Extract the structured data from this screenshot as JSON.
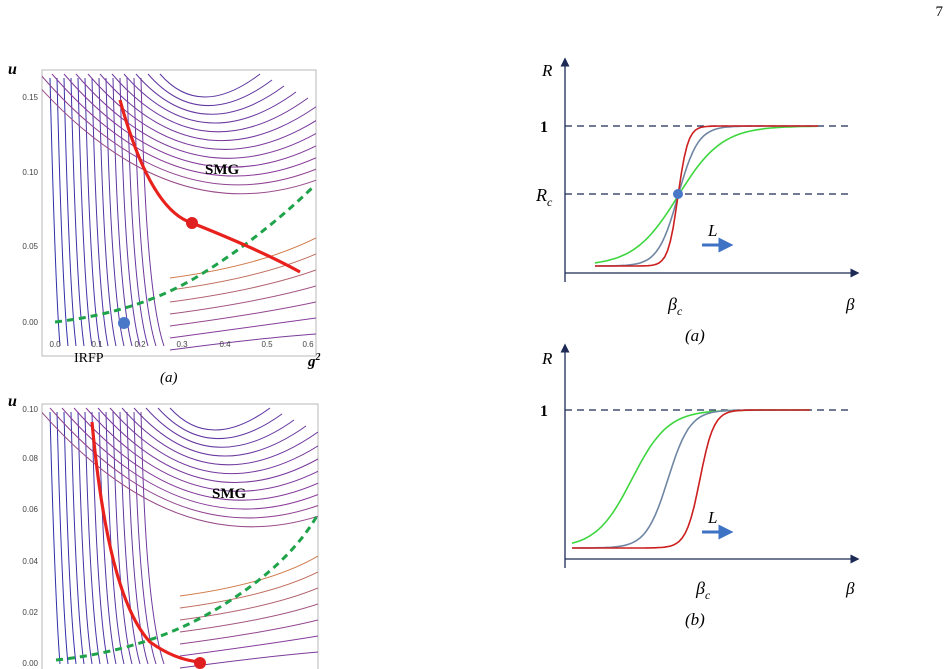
{
  "page_number": "7",
  "stream_plots": [
    {
      "y_axis_label": "u",
      "x_axis_label": "g",
      "x_axis_label_sup": "2",
      "region_label": "SMG",
      "fixed_point_label": "IRFP",
      "caption": "(a)",
      "x_ticks": [
        "0.0",
        "0.1",
        "0.2",
        "0.3",
        "0.4",
        "0.5",
        "0.6"
      ],
      "y_ticks": [
        "0.00",
        "0.05",
        "0.10",
        "0.15"
      ],
      "colors": {
        "red_curve": "#e8211d",
        "green_dashed": "#1fa34a",
        "blue_point": "#4a78c8",
        "red_point": "#e02020"
      }
    },
    {
      "y_axis_label": "u",
      "region_label": "SMG",
      "y_ticks": [
        "0.00",
        "0.02",
        "0.04",
        "0.06",
        "0.08",
        "0.10"
      ],
      "colors": {
        "red_curve": "#e8211d",
        "green_dashed": "#1fa34a",
        "red_point": "#e02020"
      }
    }
  ],
  "sketches": [
    {
      "y_axis_label": "R",
      "x_axis_label": "β",
      "one_label": "1",
      "rc_label": "R",
      "rc_sub": "c",
      "beta_c_label": "β",
      "beta_c_sub": "c",
      "L_label": "L",
      "caption": "(a)",
      "colors": {
        "green": "#3ed63e",
        "grey": "#6f86a3",
        "red": "#cc1f1f",
        "dashed": "#1c2a55",
        "point": "#4a78c8"
      }
    },
    {
      "y_axis_label": "R",
      "x_axis_label": "β",
      "one_label": "1",
      "beta_c_label": "β",
      "beta_c_sub": "c",
      "L_label": "L",
      "caption": "(b)",
      "colors": {
        "green": "#3ed63e",
        "grey": "#6f86a3",
        "red": "#cc1f1f",
        "dashed": "#1c2a55"
      }
    }
  ]
}
